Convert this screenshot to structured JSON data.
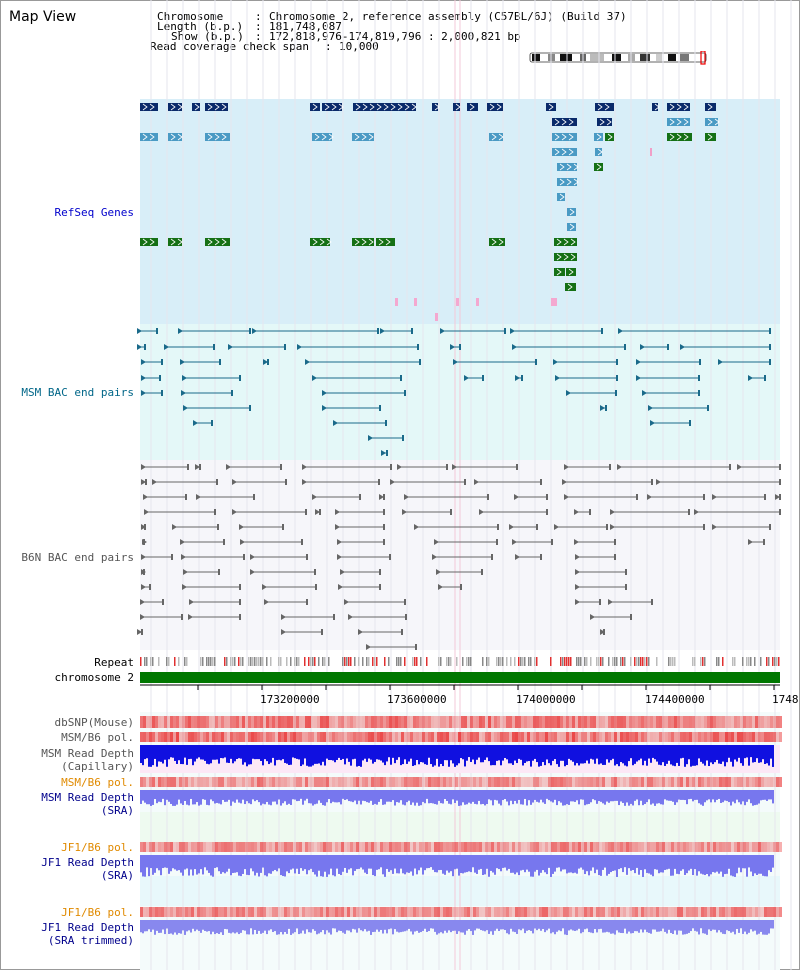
{
  "page_title": "Map View",
  "info": {
    "chromosome_label": "Chromosome",
    "chromosome_value": "Chromosome 2, reference assembly (C57BL/6J) (Build 37)",
    "length_label": "Length (b.p.)",
    "length_value": "181,748,087",
    "show_label": "Show (b.p.)",
    "show_value": "172,818,976-174,819,796 : 2,000,821 bp",
    "coverage_label": "Read coverage check span",
    "coverage_value": "10,000"
  },
  "tracks": {
    "refseq": "RefSeq Genes",
    "msm_bac": "MSM BAC end pairs",
    "b6n_bac": "B6N BAC end pairs",
    "repeat": "Repeat",
    "chromosome": "chromosome 2",
    "dbsnp": "dbSNP(Mouse)",
    "msm_b6_pol_1": "MSM/B6 pol.",
    "msm_read_depth_cap_1": "MSM Read Depth",
    "msm_read_depth_cap_2": "(Capillary)",
    "msm_b6_pol_2": "MSM/B6 pol.",
    "msm_read_depth_sra_1": "MSM Read Depth",
    "msm_read_depth_sra_2": "(SRA)",
    "jf1_b6_pol_1": "JF1/B6 pol.",
    "jf1_read_depth_sra_1": "JF1 Read Depth",
    "jf1_read_depth_sra_2": "(SRA)",
    "jf1_b6_pol_2": "JF1/B6 pol.",
    "jf1_read_depth_trim_1": "JF1 Read Depth",
    "jf1_read_depth_trim_2": "(SRA trimmed)"
  },
  "axis_ticks": [
    "173200000",
    "173600000",
    "174000000",
    "174400000",
    "1748"
  ],
  "colors": {
    "refseq_bg": "#d8eef8",
    "msm_bg": "#e4f8f8",
    "b6n_bg": "#f6f6fa",
    "gene_dark": "#0a2a6a",
    "gene_light": "#4a9ac4",
    "gene_green": "#157015",
    "chromosome_bar": "#007700",
    "depth_blue": "#1010e0",
    "depth_light": "#7777ee",
    "snp_red": "#e83030"
  }
}
